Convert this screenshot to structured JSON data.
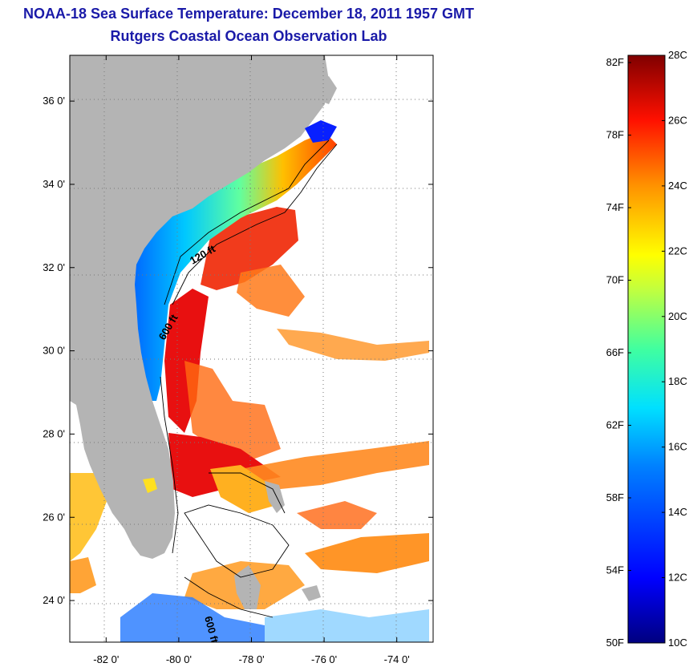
{
  "title": {
    "line1": "NOAA-18 Sea Surface Temperature:  December 18, 2011 1957 GMT",
    "line2": "Rutgers Coastal Ocean Observation Lab"
  },
  "map": {
    "lat_range": [
      23,
      37.1
    ],
    "lon_range": [
      -83,
      -73
    ],
    "lat_ticks": [
      {
        "value": 24,
        "label": "24 0'"
      },
      {
        "value": 26,
        "label": "26 0'"
      },
      {
        "value": 28,
        "label": "28 0'"
      },
      {
        "value": 30,
        "label": "30 0'"
      },
      {
        "value": 32,
        "label": "32 0'"
      },
      {
        "value": 34,
        "label": "34 0'"
      },
      {
        "value": 36,
        "label": "36 0'"
      }
    ],
    "lon_ticks": [
      {
        "value": -82,
        "label": "-82 0'"
      },
      {
        "value": -80,
        "label": "-80 0'"
      },
      {
        "value": -78,
        "label": "-78 0'"
      },
      {
        "value": -76,
        "label": "-76 0'"
      },
      {
        "value": -74,
        "label": "-74 0'"
      }
    ],
    "grid": "dotted",
    "contour_labels": [
      "120 ft",
      "600 ft",
      "600 ft"
    ],
    "colors": {
      "land": "#b4b4b4",
      "no_data": "#ffffff",
      "grid": "#777777"
    }
  },
  "colorbar": {
    "min_c": 10,
    "max_c": 28,
    "celsius_labels": [
      "28C",
      "26C",
      "24C",
      "22C",
      "20C",
      "18C",
      "16C",
      "14C",
      "12C",
      "10C"
    ],
    "fahrenheit_labels": [
      "82F",
      "78F",
      "74F",
      "70F",
      "66F",
      "62F",
      "58F",
      "54F",
      "50F"
    ],
    "colormap": [
      "#00007f",
      "#0000ff",
      "#0080ff",
      "#00ffff",
      "#80ff80",
      "#ffff00",
      "#ff8000",
      "#ff0000",
      "#7f0000"
    ]
  }
}
